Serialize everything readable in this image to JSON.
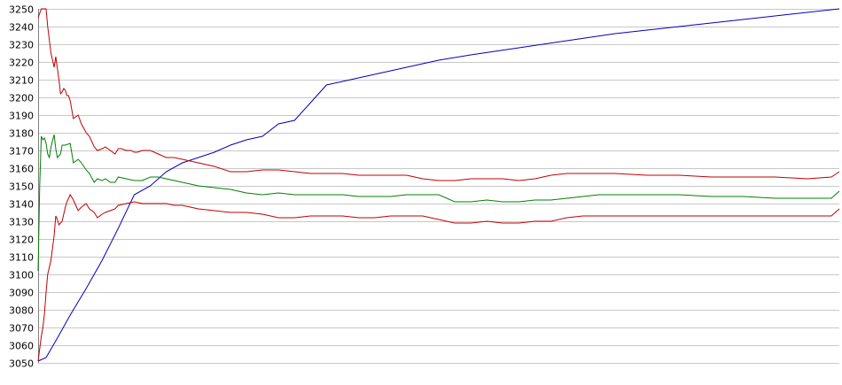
{
  "chart_data": {
    "type": "line",
    "title": "",
    "xlabel": "",
    "ylabel": "",
    "grid": true,
    "ylim": [
      3050,
      3250
    ],
    "xlim": [
      0,
      500
    ],
    "y_ticks": [
      3050,
      3060,
      3070,
      3080,
      3090,
      3100,
      3110,
      3120,
      3130,
      3140,
      3150,
      3160,
      3170,
      3180,
      3190,
      3200,
      3210,
      3220,
      3230,
      3240,
      3250
    ],
    "y_tick_labels": [
      "3050",
      "3060",
      "3070",
      "3080",
      "3090",
      "3100",
      "3110",
      "3120",
      "3130",
      "3140",
      "3150",
      "3160",
      "3170",
      "3180",
      "3190",
      "3200",
      "3210",
      "3220",
      "3230",
      "3240",
      "3250"
    ],
    "series": [
      {
        "color": "#0000c0",
        "x": [
          0,
          5,
          12,
          20,
          30,
          40,
          50,
          60,
          70,
          80,
          90,
          100,
          110,
          120,
          130,
          140,
          150,
          160,
          170,
          180,
          190,
          195,
          200,
          205,
          210,
          215,
          220,
          230,
          240,
          250,
          270,
          300,
          330,
          360,
          400,
          450,
          500
        ],
        "y": [
          3051,
          3053,
          3064,
          3077,
          3092,
          3108,
          3126,
          3145,
          3150,
          3158,
          3163,
          3166,
          3169,
          3173,
          3176,
          3178,
          3185,
          3187,
          3197,
          3207,
          3209,
          3210,
          3211,
          3212,
          3213,
          3214,
          3215,
          3217,
          3219,
          3221,
          3224,
          3228,
          3232,
          3236,
          3240,
          3245,
          3250
        ]
      },
      {
        "color": "#c00000",
        "x": [
          0,
          2,
          3,
          5,
          6,
          8,
          10,
          11,
          13,
          14,
          15,
          16,
          17,
          18,
          19,
          20,
          22,
          25,
          27,
          30,
          32,
          35,
          37,
          40,
          42,
          45,
          48,
          50,
          52,
          55,
          58,
          60,
          62,
          65,
          67,
          70,
          75,
          80,
          85,
          90,
          95,
          100,
          110,
          120,
          130,
          140,
          150,
          160,
          170,
          180,
          190,
          200,
          210,
          220,
          230,
          240,
          250,
          260,
          270,
          280,
          290,
          300,
          310,
          320,
          330,
          340,
          350,
          360,
          380,
          400,
          420,
          440,
          460,
          480,
          495,
          500
        ],
        "y": [
          3245,
          3250,
          3250,
          3250,
          3240,
          3225,
          3217,
          3223,
          3210,
          3202,
          3203,
          3205,
          3204,
          3201,
          3201,
          3198,
          3188,
          3190,
          3185,
          3180,
          3178,
          3172,
          3170,
          3171,
          3172,
          3170,
          3168,
          3171,
          3171,
          3170,
          3170,
          3169,
          3169,
          3170,
          3170,
          3170,
          3168,
          3166,
          3166,
          3165,
          3164,
          3163,
          3161,
          3158,
          3158,
          3159,
          3159,
          3158,
          3157,
          3157,
          3157,
          3156,
          3156,
          3156,
          3156,
          3154,
          3153,
          3153,
          3154,
          3154,
          3154,
          3153,
          3154,
          3156,
          3157,
          3157,
          3157,
          3157,
          3156,
          3156,
          3155,
          3155,
          3155,
          3154,
          3155,
          3158
        ]
      },
      {
        "color": "#008000",
        "x": [
          0,
          1,
          2,
          3,
          4,
          5,
          6,
          7,
          8,
          10,
          11,
          12,
          13,
          14,
          15,
          17,
          20,
          22,
          25,
          27,
          30,
          32,
          35,
          37,
          40,
          42,
          45,
          48,
          50,
          55,
          60,
          65,
          70,
          75,
          80,
          85,
          90,
          95,
          100,
          110,
          120,
          130,
          140,
          150,
          160,
          170,
          180,
          190,
          200,
          210,
          220,
          230,
          240,
          250,
          260,
          270,
          280,
          290,
          300,
          310,
          320,
          330,
          340,
          350,
          360,
          380,
          400,
          420,
          440,
          460,
          480,
          495,
          500
        ],
        "y": [
          3102,
          3150,
          3178,
          3176,
          3177,
          3174,
          3168,
          3166,
          3172,
          3179,
          3171,
          3166,
          3167,
          3168,
          3173,
          3173,
          3174,
          3163,
          3165,
          3163,
          3159,
          3157,
          3152,
          3154,
          3153,
          3154,
          3152,
          3152,
          3155,
          3154,
          3153,
          3153,
          3155,
          3155,
          3154,
          3153,
          3152,
          3151,
          3150,
          3149,
          3148,
          3146,
          3145,
          3146,
          3145,
          3145,
          3145,
          3145,
          3144,
          3144,
          3144,
          3145,
          3145,
          3145,
          3141,
          3141,
          3142,
          3141,
          3141,
          3142,
          3142,
          3143,
          3144,
          3145,
          3145,
          3145,
          3145,
          3144,
          3144,
          3143,
          3143,
          3143,
          3147
        ]
      },
      {
        "color": "#c00000",
        "x": [
          0,
          2,
          3,
          4,
          5,
          6,
          8,
          10,
          11,
          12,
          13,
          15,
          17,
          18,
          19,
          20,
          22,
          25,
          27,
          30,
          32,
          35,
          37,
          40,
          42,
          45,
          48,
          50,
          55,
          60,
          65,
          70,
          75,
          80,
          85,
          90,
          95,
          100,
          110,
          120,
          130,
          140,
          150,
          160,
          170,
          180,
          190,
          200,
          210,
          220,
          230,
          240,
          250,
          260,
          270,
          280,
          290,
          300,
          310,
          320,
          330,
          340,
          350,
          360,
          380,
          400,
          420,
          440,
          460,
          480,
          495,
          500
        ],
        "y": [
          3051,
          3065,
          3070,
          3078,
          3090,
          3100,
          3108,
          3122,
          3133,
          3131,
          3128,
          3130,
          3138,
          3141,
          3143,
          3145,
          3142,
          3136,
          3138,
          3140,
          3137,
          3135,
          3132,
          3134,
          3135,
          3136,
          3137,
          3139,
          3140,
          3141,
          3140,
          3140,
          3140,
          3140,
          3139,
          3139,
          3138,
          3137,
          3136,
          3135,
          3135,
          3134,
          3132,
          3132,
          3133,
          3133,
          3133,
          3132,
          3132,
          3133,
          3133,
          3133,
          3131,
          3129,
          3129,
          3130,
          3129,
          3129,
          3130,
          3130,
          3132,
          3133,
          3133,
          3133,
          3133,
          3133,
          3133,
          3133,
          3133,
          3133,
          3133,
          3137
        ]
      }
    ]
  }
}
